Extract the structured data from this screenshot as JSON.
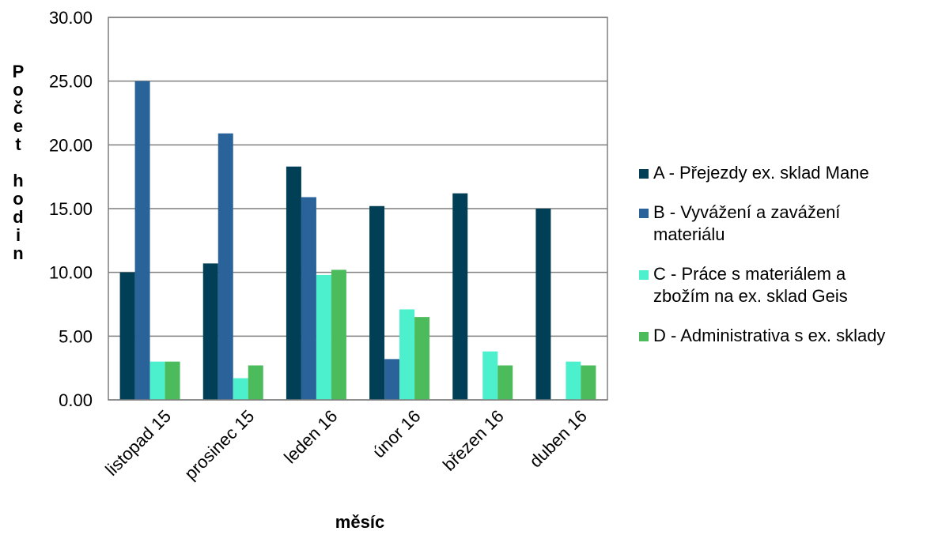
{
  "chart_data": {
    "type": "bar",
    "categories": [
      "listopad 15",
      "prosinec 15",
      "leden 16",
      "únor 16",
      "březen 16",
      "duben 16"
    ],
    "series": [
      {
        "name": "A - Přejezdy ex. sklad Mane",
        "color": "#003f55",
        "values": [
          10.0,
          10.7,
          18.3,
          15.2,
          16.2,
          15.0
        ]
      },
      {
        "name": "B - Vyvážení a zavážení materiálu",
        "color": "#2a6399",
        "values": [
          25.0,
          20.9,
          15.9,
          3.2,
          0,
          0
        ]
      },
      {
        "name": "C - Práce s materiálem a zbožím na ex. sklad Geis",
        "color": "#4cf0cd",
        "values": [
          3.0,
          1.7,
          9.8,
          7.1,
          3.8,
          3.0
        ]
      },
      {
        "name": "D - Administrativa s ex. sklady",
        "color": "#4cbb5c",
        "values": [
          3.0,
          2.7,
          10.2,
          6.5,
          2.7,
          2.7
        ]
      }
    ],
    "ylim": [
      0,
      30
    ],
    "yticks": [
      "0.00",
      "5.00",
      "10.00",
      "15.00",
      "20.00",
      "25.00",
      "30.00"
    ],
    "xlabel": "měsíc",
    "ylabel": "Počet hodin",
    "grid": true,
    "legend": "right"
  },
  "legend_items": [
    {
      "label": "A - Přejezdy ex. sklad Mane",
      "color": "#003f55"
    },
    {
      "label": "B - Vyvážení a zavážení\nmateriálu",
      "color": "#2a6399"
    },
    {
      "label": "C - Práce s materiálem a\nzbožím na ex. sklad Geis",
      "color": "#4cf0cd"
    },
    {
      "label": "D - Administrativa s ex. sklady",
      "color": "#4cbb5c"
    }
  ]
}
